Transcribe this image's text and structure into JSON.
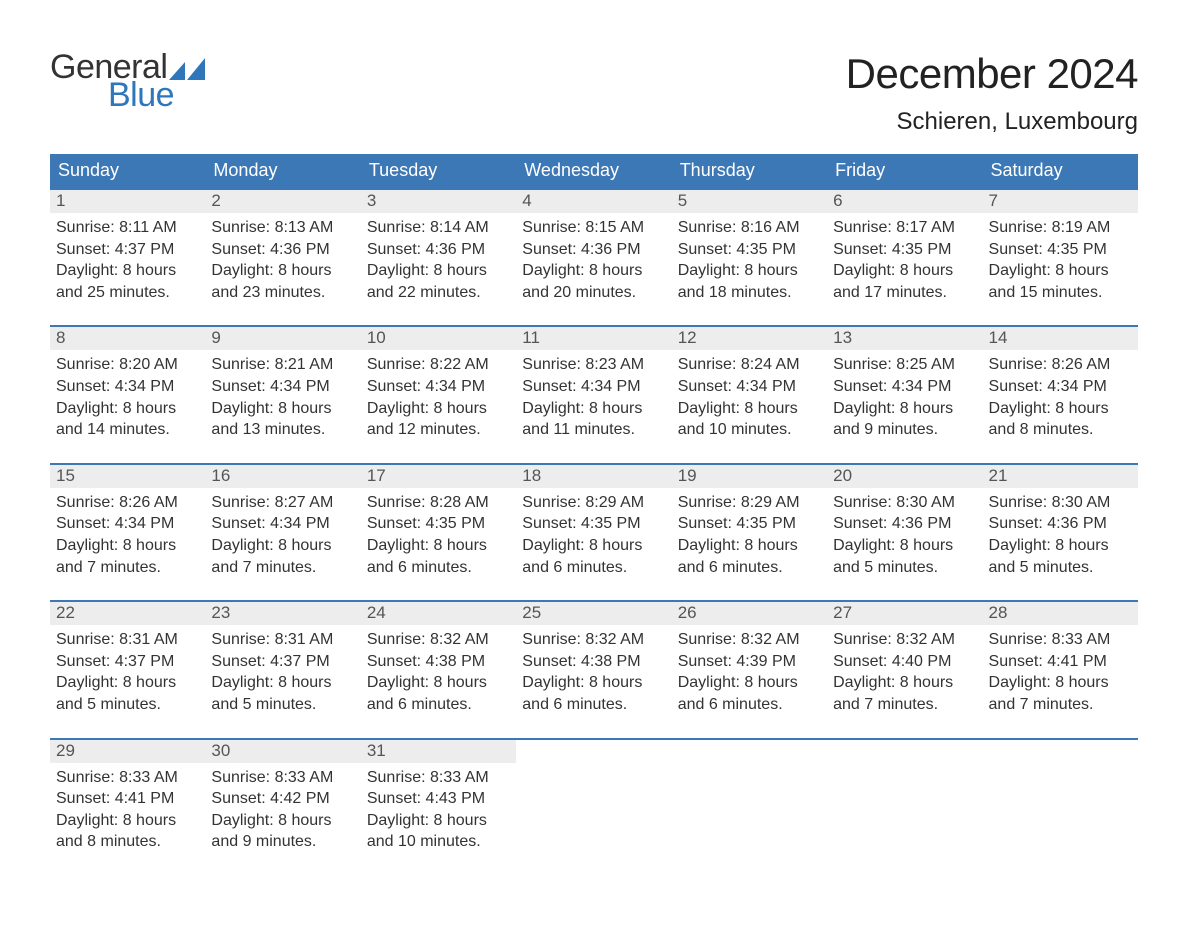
{
  "colors": {
    "header_bg": "#3b78b5",
    "header_text": "#ffffff",
    "daynum_bg": "#ededed",
    "daynum_text": "#555555",
    "body_text": "#333333",
    "week_border": "#3b78b5",
    "logo_general": "#333333",
    "logo_blue": "#2f77bb",
    "page_bg": "#ffffff"
  },
  "typography": {
    "title_fontsize": 42,
    "location_fontsize": 24,
    "dow_fontsize": 18,
    "daynum_fontsize": 17,
    "details_fontsize": 16,
    "font_family": "Arial"
  },
  "logo": {
    "word1": "General",
    "word2": "Blue"
  },
  "title": "December 2024",
  "location": "Schieren, Luxembourg",
  "days_of_week": [
    "Sunday",
    "Monday",
    "Tuesday",
    "Wednesday",
    "Thursday",
    "Friday",
    "Saturday"
  ],
  "weeks": [
    [
      {
        "num": "1",
        "sunrise": "Sunrise: 8:11 AM",
        "sunset": "Sunset: 4:37 PM",
        "d1": "Daylight: 8 hours",
        "d2": "and 25 minutes."
      },
      {
        "num": "2",
        "sunrise": "Sunrise: 8:13 AM",
        "sunset": "Sunset: 4:36 PM",
        "d1": "Daylight: 8 hours",
        "d2": "and 23 minutes."
      },
      {
        "num": "3",
        "sunrise": "Sunrise: 8:14 AM",
        "sunset": "Sunset: 4:36 PM",
        "d1": "Daylight: 8 hours",
        "d2": "and 22 minutes."
      },
      {
        "num": "4",
        "sunrise": "Sunrise: 8:15 AM",
        "sunset": "Sunset: 4:36 PM",
        "d1": "Daylight: 8 hours",
        "d2": "and 20 minutes."
      },
      {
        "num": "5",
        "sunrise": "Sunrise: 8:16 AM",
        "sunset": "Sunset: 4:35 PM",
        "d1": "Daylight: 8 hours",
        "d2": "and 18 minutes."
      },
      {
        "num": "6",
        "sunrise": "Sunrise: 8:17 AM",
        "sunset": "Sunset: 4:35 PM",
        "d1": "Daylight: 8 hours",
        "d2": "and 17 minutes."
      },
      {
        "num": "7",
        "sunrise": "Sunrise: 8:19 AM",
        "sunset": "Sunset: 4:35 PM",
        "d1": "Daylight: 8 hours",
        "d2": "and 15 minutes."
      }
    ],
    [
      {
        "num": "8",
        "sunrise": "Sunrise: 8:20 AM",
        "sunset": "Sunset: 4:34 PM",
        "d1": "Daylight: 8 hours",
        "d2": "and 14 minutes."
      },
      {
        "num": "9",
        "sunrise": "Sunrise: 8:21 AM",
        "sunset": "Sunset: 4:34 PM",
        "d1": "Daylight: 8 hours",
        "d2": "and 13 minutes."
      },
      {
        "num": "10",
        "sunrise": "Sunrise: 8:22 AM",
        "sunset": "Sunset: 4:34 PM",
        "d1": "Daylight: 8 hours",
        "d2": "and 12 minutes."
      },
      {
        "num": "11",
        "sunrise": "Sunrise: 8:23 AM",
        "sunset": "Sunset: 4:34 PM",
        "d1": "Daylight: 8 hours",
        "d2": "and 11 minutes."
      },
      {
        "num": "12",
        "sunrise": "Sunrise: 8:24 AM",
        "sunset": "Sunset: 4:34 PM",
        "d1": "Daylight: 8 hours",
        "d2": "and 10 minutes."
      },
      {
        "num": "13",
        "sunrise": "Sunrise: 8:25 AM",
        "sunset": "Sunset: 4:34 PM",
        "d1": "Daylight: 8 hours",
        "d2": "and 9 minutes."
      },
      {
        "num": "14",
        "sunrise": "Sunrise: 8:26 AM",
        "sunset": "Sunset: 4:34 PM",
        "d1": "Daylight: 8 hours",
        "d2": "and 8 minutes."
      }
    ],
    [
      {
        "num": "15",
        "sunrise": "Sunrise: 8:26 AM",
        "sunset": "Sunset: 4:34 PM",
        "d1": "Daylight: 8 hours",
        "d2": "and 7 minutes."
      },
      {
        "num": "16",
        "sunrise": "Sunrise: 8:27 AM",
        "sunset": "Sunset: 4:34 PM",
        "d1": "Daylight: 8 hours",
        "d2": "and 7 minutes."
      },
      {
        "num": "17",
        "sunrise": "Sunrise: 8:28 AM",
        "sunset": "Sunset: 4:35 PM",
        "d1": "Daylight: 8 hours",
        "d2": "and 6 minutes."
      },
      {
        "num": "18",
        "sunrise": "Sunrise: 8:29 AM",
        "sunset": "Sunset: 4:35 PM",
        "d1": "Daylight: 8 hours",
        "d2": "and 6 minutes."
      },
      {
        "num": "19",
        "sunrise": "Sunrise: 8:29 AM",
        "sunset": "Sunset: 4:35 PM",
        "d1": "Daylight: 8 hours",
        "d2": "and 6 minutes."
      },
      {
        "num": "20",
        "sunrise": "Sunrise: 8:30 AM",
        "sunset": "Sunset: 4:36 PM",
        "d1": "Daylight: 8 hours",
        "d2": "and 5 minutes."
      },
      {
        "num": "21",
        "sunrise": "Sunrise: 8:30 AM",
        "sunset": "Sunset: 4:36 PM",
        "d1": "Daylight: 8 hours",
        "d2": "and 5 minutes."
      }
    ],
    [
      {
        "num": "22",
        "sunrise": "Sunrise: 8:31 AM",
        "sunset": "Sunset: 4:37 PM",
        "d1": "Daylight: 8 hours",
        "d2": "and 5 minutes."
      },
      {
        "num": "23",
        "sunrise": "Sunrise: 8:31 AM",
        "sunset": "Sunset: 4:37 PM",
        "d1": "Daylight: 8 hours",
        "d2": "and 5 minutes."
      },
      {
        "num": "24",
        "sunrise": "Sunrise: 8:32 AM",
        "sunset": "Sunset: 4:38 PM",
        "d1": "Daylight: 8 hours",
        "d2": "and 6 minutes."
      },
      {
        "num": "25",
        "sunrise": "Sunrise: 8:32 AM",
        "sunset": "Sunset: 4:38 PM",
        "d1": "Daylight: 8 hours",
        "d2": "and 6 minutes."
      },
      {
        "num": "26",
        "sunrise": "Sunrise: 8:32 AM",
        "sunset": "Sunset: 4:39 PM",
        "d1": "Daylight: 8 hours",
        "d2": "and 6 minutes."
      },
      {
        "num": "27",
        "sunrise": "Sunrise: 8:32 AM",
        "sunset": "Sunset: 4:40 PM",
        "d1": "Daylight: 8 hours",
        "d2": "and 7 minutes."
      },
      {
        "num": "28",
        "sunrise": "Sunrise: 8:33 AM",
        "sunset": "Sunset: 4:41 PM",
        "d1": "Daylight: 8 hours",
        "d2": "and 7 minutes."
      }
    ],
    [
      {
        "num": "29",
        "sunrise": "Sunrise: 8:33 AM",
        "sunset": "Sunset: 4:41 PM",
        "d1": "Daylight: 8 hours",
        "d2": "and 8 minutes."
      },
      {
        "num": "30",
        "sunrise": "Sunrise: 8:33 AM",
        "sunset": "Sunset: 4:42 PM",
        "d1": "Daylight: 8 hours",
        "d2": "and 9 minutes."
      },
      {
        "num": "31",
        "sunrise": "Sunrise: 8:33 AM",
        "sunset": "Sunset: 4:43 PM",
        "d1": "Daylight: 8 hours",
        "d2": "and 10 minutes."
      },
      {
        "empty": true
      },
      {
        "empty": true
      },
      {
        "empty": true
      },
      {
        "empty": true
      }
    ]
  ]
}
